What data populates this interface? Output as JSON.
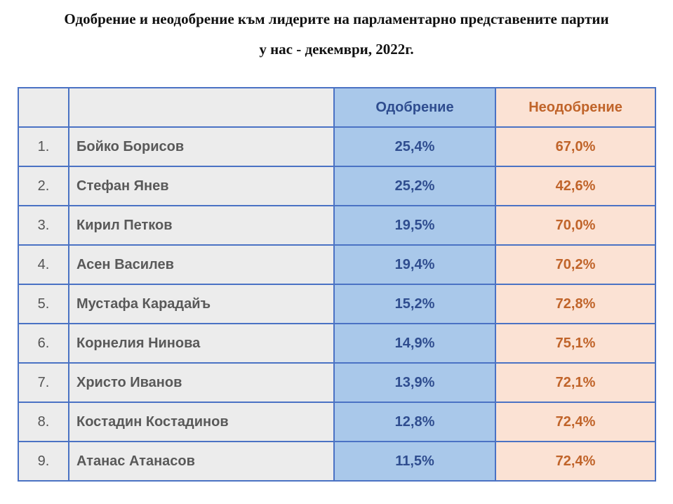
{
  "title_line1": "Одобрение и неодобрение към лидерите на парламентарно представените партии",
  "title_line2": "у нас - декември, 2022г.",
  "colors": {
    "border": "#4a72c4",
    "name_bg": "#ececec",
    "approval_bg": "#a9c8ea",
    "approval_text": "#2f4d8f",
    "disapproval_bg": "#fbe2d4",
    "disapproval_text": "#c0642a"
  },
  "chart_data": {
    "type": "table",
    "columns": [
      "",
      "",
      "Одобрение",
      "Неодобрение"
    ],
    "rows": [
      {
        "rank": "1.",
        "name": "Бойко Борисов",
        "approval": "25,4%",
        "disapproval": "67,0%"
      },
      {
        "rank": "2.",
        "name": "Стефан Янев",
        "approval": "25,2%",
        "disapproval": "42,6%"
      },
      {
        "rank": "3.",
        "name": "Кирил Петков",
        "approval": "19,5%",
        "disapproval": "70,0%"
      },
      {
        "rank": "4.",
        "name": "Асен Василев",
        "approval": "19,4%",
        "disapproval": "70,2%"
      },
      {
        "rank": "5.",
        "name": "Мустафа Карадайъ",
        "approval": "15,2%",
        "disapproval": "72,8%"
      },
      {
        "rank": "6.",
        "name": "Корнелия Нинова",
        "approval": "14,9%",
        "disapproval": "75,1%"
      },
      {
        "rank": "7.",
        "name": "Христо Иванов",
        "approval": "13,9%",
        "disapproval": "72,1%"
      },
      {
        "rank": "8.",
        "name": "Костадин Костадинов",
        "approval": "12,8%",
        "disapproval": "72,4%"
      },
      {
        "rank": "9.",
        "name": "Атанас Атанасов",
        "approval": "11,5%",
        "disapproval": "72,4%"
      }
    ]
  }
}
